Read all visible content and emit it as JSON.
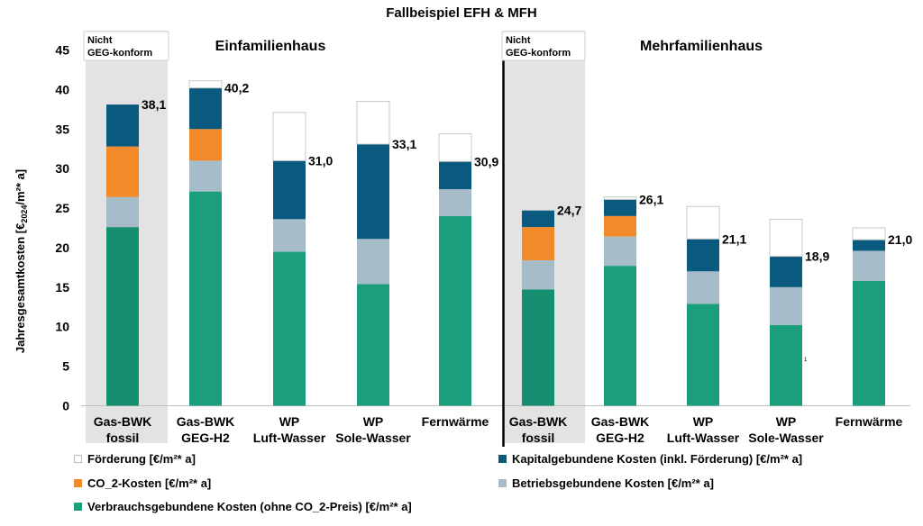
{
  "colors": {
    "foerderung": "#ffffff",
    "kapital": "#0a5a80",
    "co2": "#f28a2a",
    "betrieb": "#a7bcc9",
    "verbrauch": "#1a9e7c",
    "verbrauch_fossil": "#168f71",
    "shade": "#e3e3e3"
  },
  "chart_data": {
    "type": "bar",
    "stacked": true,
    "title": "Fallbeispiel EFH & MFH",
    "ylabel_parts": [
      "Jahresgesamtkosten [€",
      "2024",
      "/m²* a]"
    ],
    "ylim": [
      0,
      45
    ],
    "yticks": [
      0,
      5,
      10,
      15,
      20,
      25,
      30,
      35,
      40,
      45
    ],
    "groups": [
      {
        "title": "Einfamilienhaus",
        "note": [
          "Nicht",
          "GEG-konform"
        ],
        "bars": [
          {
            "label": [
              "Gas-BWK",
              "fossil"
            ],
            "verbrauch": 22.6,
            "betrieb": 3.8,
            "co2": 6.4,
            "kapital": 5.3,
            "foerderung": 0,
            "total_label": "38,1",
            "fossil": true
          },
          {
            "label": [
              "Gas-BWK",
              "GEG-H2"
            ],
            "verbrauch": 27.1,
            "betrieb": 3.9,
            "co2": 4.0,
            "kapital": 5.2,
            "foerderung": 0.9,
            "total_label": "40,2",
            "fossil": false
          },
          {
            "label": [
              "WP",
              "Luft-Wasser"
            ],
            "verbrauch": 19.5,
            "betrieb": 4.1,
            "co2": 0,
            "kapital": 7.4,
            "foerderung": 6.1,
            "total_label": "31,0",
            "fossil": false
          },
          {
            "label": [
              "WP",
              "Sole-Wasser"
            ],
            "verbrauch": 15.4,
            "betrieb": 5.7,
            "co2": 0,
            "kapital": 12.0,
            "foerderung": 5.4,
            "total_label": "33,1",
            "fossil": false
          },
          {
            "label": [
              "Fernwärme",
              ""
            ],
            "verbrauch": 24.0,
            "betrieb": 3.4,
            "co2": 0,
            "kapital": 3.5,
            "foerderung": 3.5,
            "total_label": "30,9",
            "fossil": false
          }
        ]
      },
      {
        "title": "Mehrfamilienhaus",
        "note": [
          "Nicht",
          "GEG-konform"
        ],
        "bars": [
          {
            "label": [
              "Gas-BWK",
              "fossil"
            ],
            "verbrauch": 14.7,
            "betrieb": 3.7,
            "co2": 4.2,
            "kapital": 2.1,
            "foerderung": 0,
            "total_label": "24,7",
            "fossil": true
          },
          {
            "label": [
              "Gas-BWK",
              "GEG-H2"
            ],
            "verbrauch": 17.7,
            "betrieb": 3.7,
            "co2": 2.6,
            "kapital": 2.1,
            "foerderung": 0.3,
            "total_label": "26,1",
            "fossil": false
          },
          {
            "label": [
              "WP",
              "Luft-Wasser"
            ],
            "verbrauch": 12.9,
            "betrieb": 4.1,
            "co2": 0,
            "kapital": 4.1,
            "foerderung": 4.1,
            "total_label": "21,1",
            "fossil": false
          },
          {
            "label": [
              "WP",
              "Sole-Wasser"
            ],
            "verbrauch": 10.2,
            "betrieb": 4.8,
            "co2": 0,
            "kapital": 3.9,
            "foerderung": 4.7,
            "total_label": "18,9",
            "fossil": false
          },
          {
            "label": [
              "Fernwärme",
              ""
            ],
            "verbrauch": 15.8,
            "betrieb": 3.8,
            "co2": 0,
            "kapital": 1.4,
            "foerderung": 1.5,
            "total_label": "21,0",
            "fossil": false
          }
        ]
      }
    ],
    "legend": [
      {
        "key": "foerderung",
        "label": "Förderung [€/m²* a]"
      },
      {
        "key": "kapital",
        "label": "Kapitalgebundene Kosten (inkl. Förderung) [€/m²* a]"
      },
      {
        "key": "co2",
        "label": "CO_2-Kosten [€/m²* a]"
      },
      {
        "key": "betrieb",
        "label": "Betriebsgebundene Kosten  [€/m²* a]"
      },
      {
        "key": "verbrauch",
        "label": "Verbrauchsgebundene Kosten (ohne CO_2-Preis) [€/m²* a]"
      }
    ],
    "annotation": "1"
  }
}
